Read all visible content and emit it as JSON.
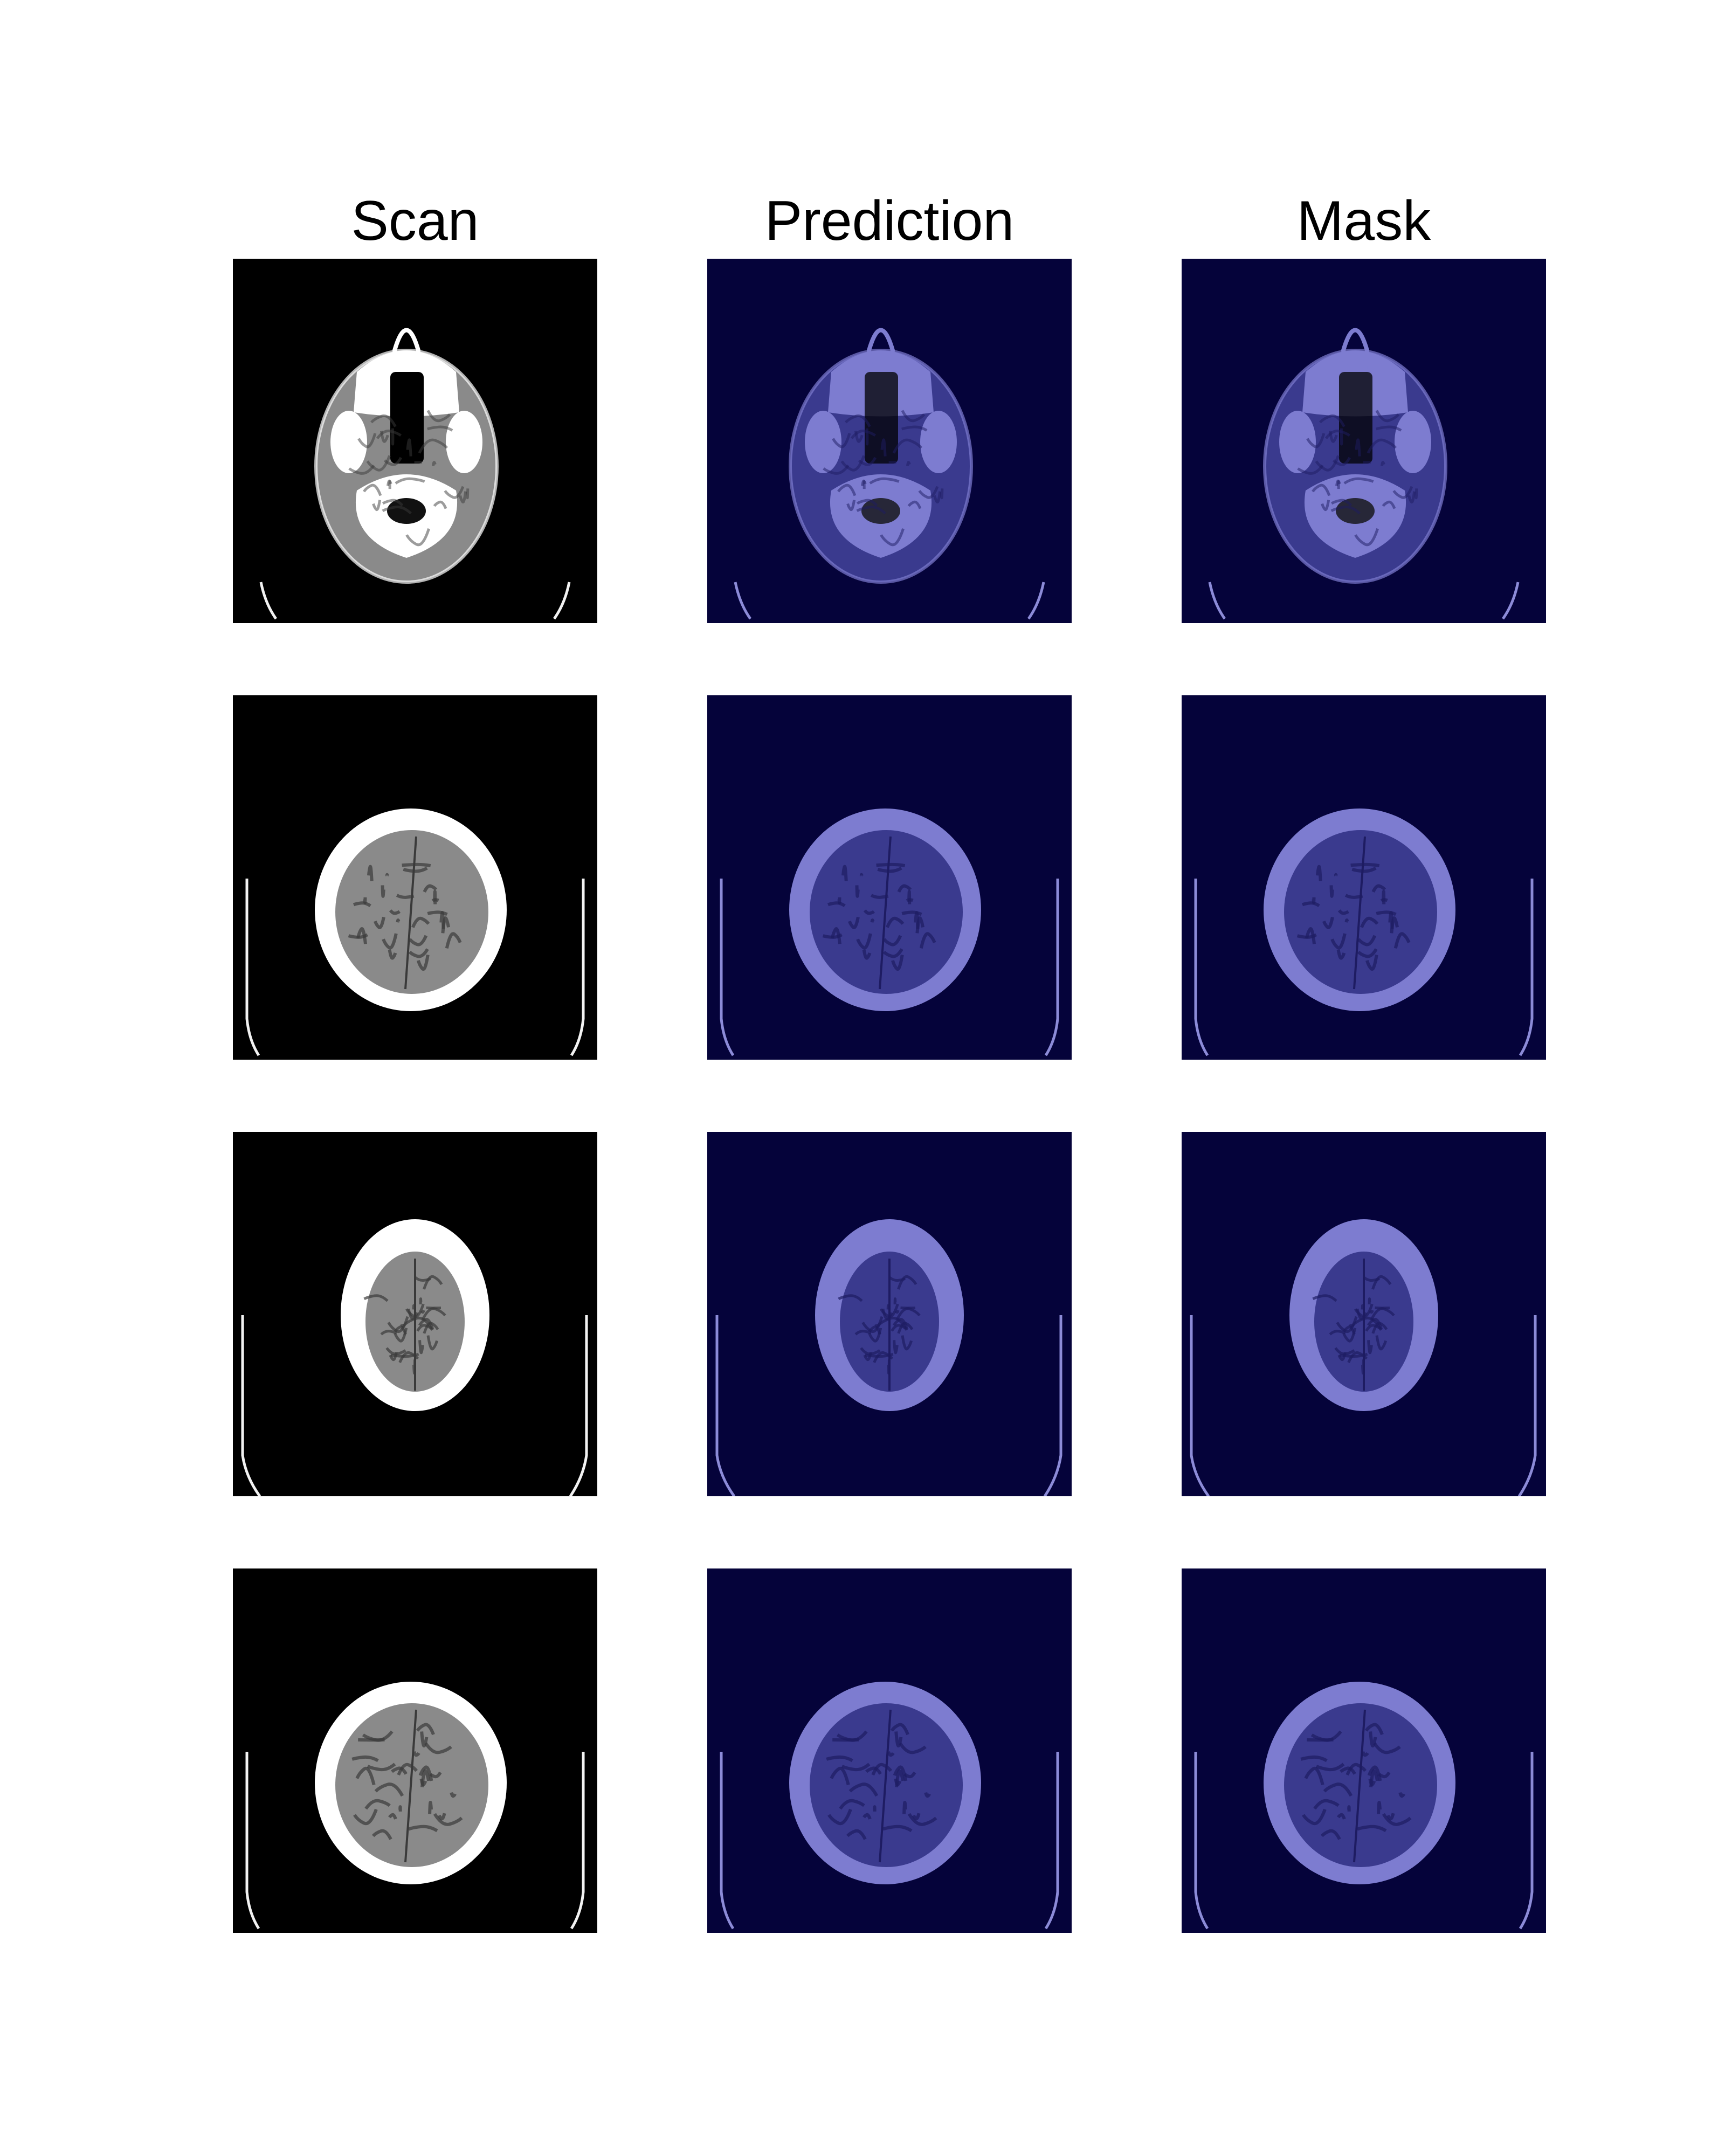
{
  "columns": [
    {
      "title": "Scan",
      "kind": "scan"
    },
    {
      "title": "Prediction",
      "kind": "overlay"
    },
    {
      "title": "Mask",
      "kind": "overlay"
    }
  ],
  "rows": [
    {
      "slice": "skull-base"
    },
    {
      "slice": "upper-cerebrum"
    },
    {
      "slice": "vertex"
    },
    {
      "slice": "upper-cerebrum"
    }
  ],
  "colors": {
    "scan_background": "#000000",
    "overlay_background": "#05033a",
    "overlay_tint": "#7d7cd0",
    "bone": "#ffffff",
    "tissue": "#8a8a8a"
  }
}
